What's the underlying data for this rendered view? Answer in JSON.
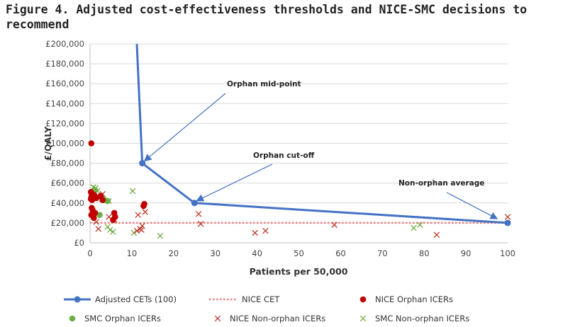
{
  "title": "Figure 4. Adjusted cost-effectiveness thresholds and NICE-SMC decisions to recommend",
  "chart_data": {
    "type": "scatter",
    "title": "Figure 4. Adjusted cost-effectiveness thresholds and NICE-SMC decisions to recommend",
    "xlabel": "Patients per 50,000",
    "ylabel": "£/QALY",
    "xlim": [
      0,
      100
    ],
    "ylim": [
      0,
      200000
    ],
    "xticks": [
      "0",
      "10",
      "20",
      "30",
      "40",
      "50",
      "60",
      "70",
      "80",
      "90",
      "100"
    ],
    "yticks": [
      "£0",
      "£20,000",
      "£40,000",
      "£60,000",
      "£80,000",
      "£100,000",
      "£120,000",
      "£140,000",
      "£160,000",
      "£180,000",
      "£200,000"
    ],
    "grid": true,
    "legend_position": "bottom",
    "series": [
      {
        "name": "Adjusted CETs (100)",
        "kind": "line-markers",
        "color": "#4472c4",
        "points": [
          [
            11.2,
            200000
          ],
          [
            12.5,
            80000
          ],
          [
            25,
            40000
          ],
          [
            100,
            20000
          ]
        ],
        "markers": [
          [
            12.5,
            80000
          ],
          [
            25,
            40000
          ],
          [
            100,
            20000
          ]
        ]
      },
      {
        "name": "NICE CET",
        "kind": "dotted-line",
        "color": "#f08080",
        "points": [
          [
            0,
            20000
          ],
          [
            100,
            20000
          ]
        ]
      },
      {
        "name": "NICE Orphan ICERs",
        "kind": "dot",
        "color": "#c00000",
        "points": [
          [
            0.3,
            100000
          ],
          [
            0.2,
            51000
          ],
          [
            0.4,
            49000
          ],
          [
            0.6,
            47000
          ],
          [
            0.3,
            46000
          ],
          [
            0.8,
            45000
          ],
          [
            0.2,
            44000
          ],
          [
            0.5,
            43000
          ],
          [
            1.0,
            48000
          ],
          [
            1.5,
            45000
          ],
          [
            0.4,
            35000
          ],
          [
            0.6,
            33000
          ],
          [
            1.2,
            30000
          ],
          [
            0.3,
            28000
          ],
          [
            0.9,
            25000
          ],
          [
            2.5,
            47000
          ],
          [
            3.0,
            43000
          ],
          [
            5.8,
            30000
          ],
          [
            6.0,
            26000
          ],
          [
            5.5,
            23000
          ],
          [
            13.0,
            39000
          ],
          [
            12.8,
            37000
          ]
        ]
      },
      {
        "name": "SMC Orphan ICERs",
        "kind": "dot",
        "color": "#70ad47",
        "points": [
          [
            1.2,
            53000
          ],
          [
            3.5,
            43000
          ],
          [
            4.2,
            42000
          ],
          [
            2.3,
            28000
          ],
          [
            25,
            40000
          ]
        ]
      },
      {
        "name": "NICE Non-orphan ICERs",
        "kind": "x",
        "color": "#c0392b",
        "points": [
          [
            1.5,
            21000
          ],
          [
            2.0,
            14000
          ],
          [
            3.0,
            49000
          ],
          [
            2.2,
            45000
          ],
          [
            4.5,
            26000
          ],
          [
            5.8,
            23000
          ],
          [
            11.5,
            28000
          ],
          [
            12.0,
            14000
          ],
          [
            12.5,
            17000
          ],
          [
            12.3,
            13000
          ],
          [
            11.2,
            12000
          ],
          [
            13.2,
            31000
          ],
          [
            26.0,
            29000
          ],
          [
            26.5,
            19000
          ],
          [
            39.5,
            10000
          ],
          [
            42.0,
            12000
          ],
          [
            58.5,
            18000
          ],
          [
            83.0,
            8000
          ],
          [
            100,
            26000
          ]
        ]
      },
      {
        "name": "SMC Non-orphan ICERs",
        "kind": "x",
        "color": "#70ad47",
        "points": [
          [
            0.8,
            56000
          ],
          [
            1.3,
            55000
          ],
          [
            1.8,
            52000
          ],
          [
            2.8,
            44000
          ],
          [
            4.5,
            42000
          ],
          [
            4.2,
            16000
          ],
          [
            4.8,
            13000
          ],
          [
            5.5,
            11000
          ],
          [
            10.2,
            52000
          ],
          [
            10.5,
            10000
          ],
          [
            16.8,
            7000
          ],
          [
            77.5,
            15000
          ],
          [
            79.0,
            18000
          ]
        ]
      }
    ],
    "annotations": [
      {
        "text": "Orphan mid-point",
        "arrow_to": [
          12.5,
          80000
        ]
      },
      {
        "text": "Orphan cut-off",
        "arrow_to": [
          25,
          40000
        ]
      },
      {
        "text": "Non-orphan average",
        "arrow_to": [
          97.5,
          22000
        ]
      }
    ]
  }
}
